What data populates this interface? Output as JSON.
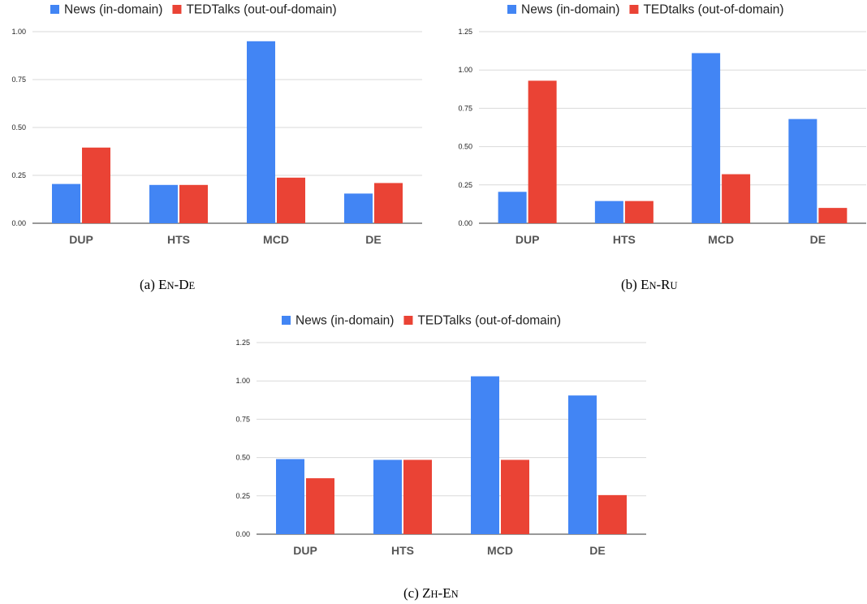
{
  "colors": {
    "news": "#4285F4",
    "ted": "#EA4335"
  },
  "chart_data": [
    {
      "type": "bar",
      "caption_prefix": "(a) ",
      "caption_l1": "E",
      "caption_s1": "N",
      "caption_l2": "-D",
      "caption_s2": "E",
      "categories": [
        "DUP",
        "HTS",
        "MCD",
        "DE"
      ],
      "yticks": [
        "0.00",
        "0.25",
        "0.50",
        "0.75",
        "1.00"
      ],
      "ylim": [
        0,
        1.0
      ],
      "legend_position": "top",
      "series": [
        {
          "name": "News (in-domain)",
          "values": [
            0.205,
            0.2,
            0.95,
            0.155
          ]
        },
        {
          "name": "TEDTalks (out-ouf-domain)",
          "values": [
            0.395,
            0.2,
            0.238,
            0.21
          ]
        }
      ]
    },
    {
      "type": "bar",
      "caption_prefix": "(b) ",
      "caption_l1": "E",
      "caption_s1": "N",
      "caption_l2": "-R",
      "caption_s2": "U",
      "categories": [
        "DUP",
        "HTS",
        "MCD",
        "DE"
      ],
      "yticks": [
        "0.00",
        "0.25",
        "0.50",
        "0.75",
        "1.00",
        "1.25"
      ],
      "ylim": [
        0,
        1.25
      ],
      "legend_position": "top",
      "series": [
        {
          "name": "News (in-domain)",
          "values": [
            0.205,
            0.145,
            1.11,
            0.68
          ]
        },
        {
          "name": "TEDtalks (out-of-domain)",
          "values": [
            0.93,
            0.145,
            0.32,
            0.1
          ]
        }
      ]
    },
    {
      "type": "bar",
      "caption_prefix": "(c) ",
      "caption_l1": "Z",
      "caption_s1": "H",
      "caption_l2": "-E",
      "caption_s2": "N",
      "categories": [
        "DUP",
        "HTS",
        "MCD",
        "DE"
      ],
      "yticks": [
        "0.00",
        "0.25",
        "0.50",
        "0.75",
        "1.00",
        "1.25"
      ],
      "ylim": [
        0,
        1.25
      ],
      "legend_position": "top",
      "series": [
        {
          "name": "News (in-domain)",
          "values": [
            0.49,
            0.485,
            1.03,
            0.905
          ]
        },
        {
          "name": "TEDTalks (out-of-domain)",
          "values": [
            0.365,
            0.485,
            0.485,
            0.255
          ]
        }
      ]
    }
  ]
}
